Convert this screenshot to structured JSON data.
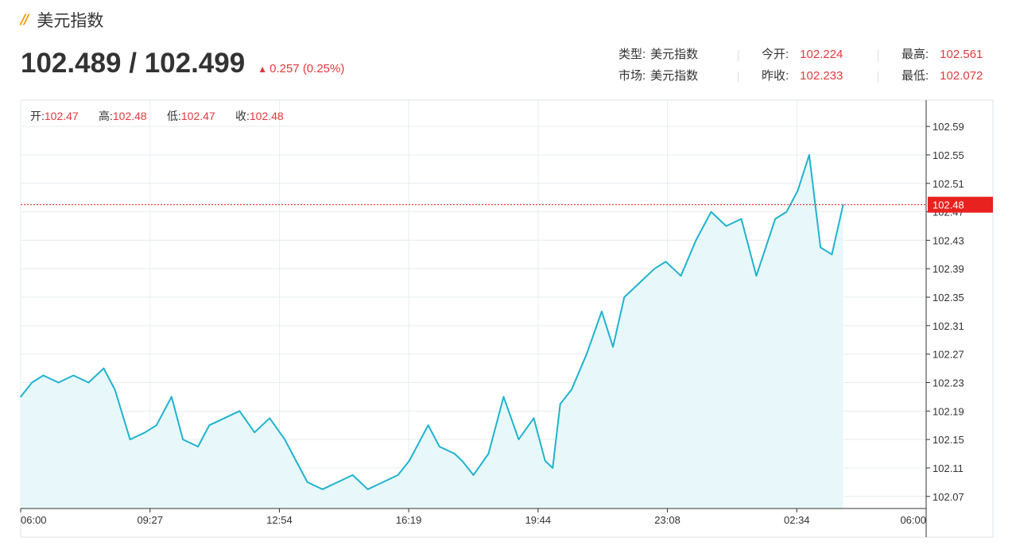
{
  "header": {
    "title": "美元指数",
    "mark": "//"
  },
  "price": {
    "main": "102.489 / 102.499",
    "change": "0.257 (0.25%)",
    "up_color": "#e4393c"
  },
  "info": {
    "type_label": "类型:",
    "type_value": "美元指数",
    "market_label": "市场:",
    "market_value": "美元指数",
    "open_label": "今开:",
    "open_value": "102.224",
    "prev_label": "昨收:",
    "prev_value": "102.233",
    "high_label": "最高:",
    "high_value": "102.561",
    "low_label": "最低:",
    "low_value": "102.072"
  },
  "ohlc": {
    "open_label": "开:",
    "open_value": "102.47",
    "high_label": "高:",
    "high_value": "102.48",
    "low_label": "低:",
    "low_value": "102.47",
    "close_label": "收:",
    "close_value": "102.48"
  },
  "chart_data": {
    "type": "area",
    "title": "",
    "xlabel": "",
    "ylabel": "",
    "line_color": "#1fb3cf",
    "fill_color": "#e8f8fa",
    "last_price_label": "102.48",
    "last_price": 102.48,
    "last_price_color": "#e8221f",
    "grid": true,
    "ylim": [
      102.053,
      102.627
    ],
    "y_ticks": [
      102.59,
      102.55,
      102.51,
      102.47,
      102.43,
      102.39,
      102.35,
      102.31,
      102.27,
      102.23,
      102.19,
      102.15,
      102.11,
      102.07
    ],
    "y_tick_labels": [
      "102.59",
      "102.55",
      "102.51",
      "102.47",
      "102.43",
      "102.39",
      "102.35",
      "102.31",
      "102.27",
      "102.23",
      "102.19",
      "102.15",
      "102.11",
      "102.07"
    ],
    "x_tick_labels": [
      "06:00",
      "09:27",
      "12:54",
      "16:19",
      "19:44",
      "23:08",
      "02:34",
      "06:00"
    ],
    "x_unit": "hours since 06:00",
    "x_range": [
      0,
      24
    ],
    "series": [
      {
        "x": [
          0,
          0.3,
          0.6,
          1.0,
          1.4,
          1.8,
          2.2,
          2.5,
          2.9,
          3.3,
          3.6,
          4.0,
          4.3,
          4.7,
          5.0,
          5.4,
          5.8,
          6.2,
          6.6,
          7.0,
          7.3,
          7.6,
          8.0,
          8.4,
          8.8,
          9.2,
          9.6,
          10.0,
          10.3,
          10.8,
          11.1,
          11.5,
          11.7,
          12.0,
          12.4,
          12.8,
          13.0,
          13.2,
          13.6,
          13.9,
          14.1,
          14.3,
          14.6,
          15.0,
          15.4,
          15.7,
          16.0,
          16.4,
          16.8,
          17.1,
          17.5,
          17.9,
          18.3,
          18.7,
          19.1,
          19.5,
          20.0,
          20.3,
          20.6,
          20.9,
          21.2,
          21.5,
          21.8
        ],
        "y": [
          102.21,
          102.23,
          102.24,
          102.23,
          102.24,
          102.23,
          102.25,
          102.22,
          102.15,
          102.16,
          102.17,
          102.21,
          102.15,
          102.14,
          102.17,
          102.18,
          102.19,
          102.16,
          102.18,
          102.15,
          102.12,
          102.09,
          102.08,
          102.09,
          102.1,
          102.08,
          102.09,
          102.1,
          102.12,
          102.17,
          102.14,
          102.13,
          102.12,
          102.1,
          102.13,
          102.21,
          102.18,
          102.15,
          102.18,
          102.12,
          102.11,
          102.2,
          102.22,
          102.27,
          102.33,
          102.28,
          102.35,
          102.37,
          102.39,
          102.4,
          102.38,
          102.43,
          102.47,
          102.45,
          102.46,
          102.38,
          102.46,
          102.47,
          102.5,
          102.55,
          102.42,
          102.41,
          102.48
        ]
      }
    ]
  }
}
